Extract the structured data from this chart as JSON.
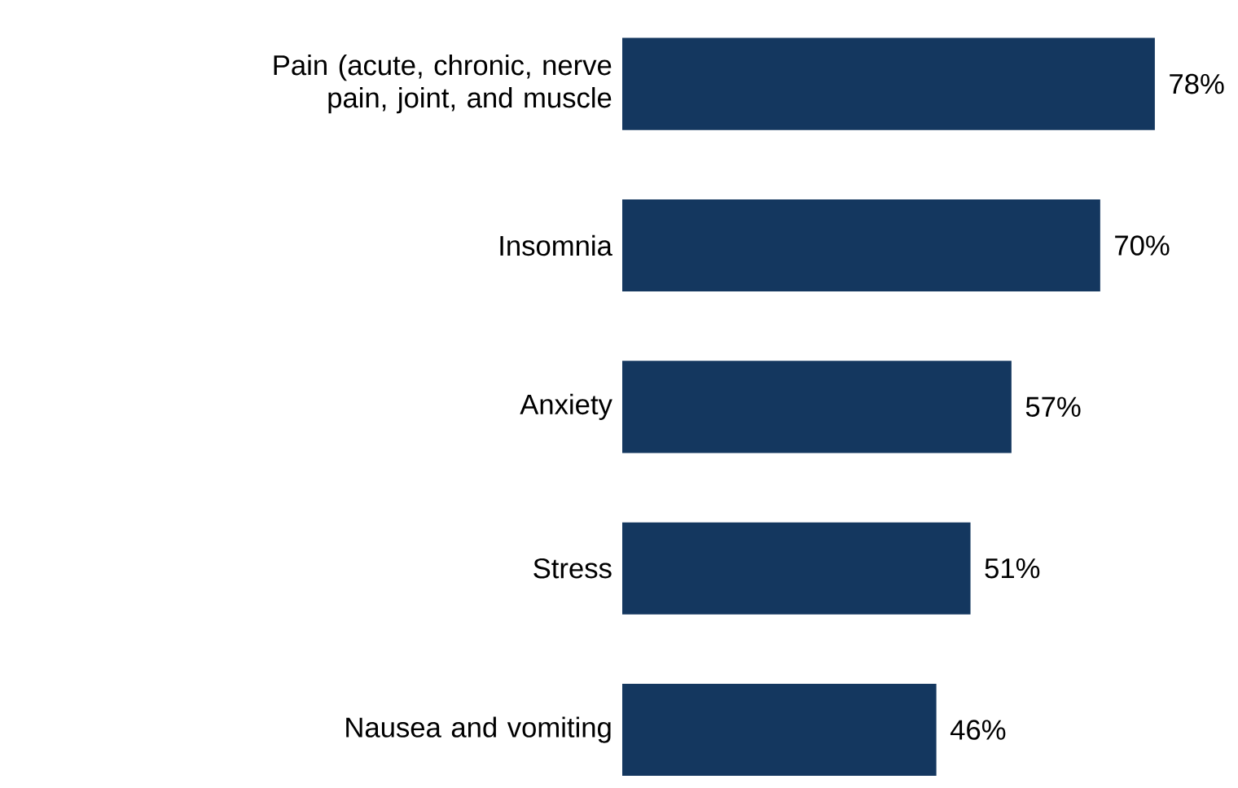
{
  "chart_data": {
    "type": "bar",
    "orientation": "horizontal",
    "categories": [
      "Pain (acute, chronic, nerve pain, joint, and muscle",
      "Insomnia",
      "Anxiety",
      "Stress",
      "Nausea and vomiting"
    ],
    "values": [
      78,
      70,
      57,
      51,
      46
    ],
    "value_labels": [
      "78%",
      "70%",
      "57%",
      "51%",
      "46%"
    ],
    "color": "#14375f"
  }
}
